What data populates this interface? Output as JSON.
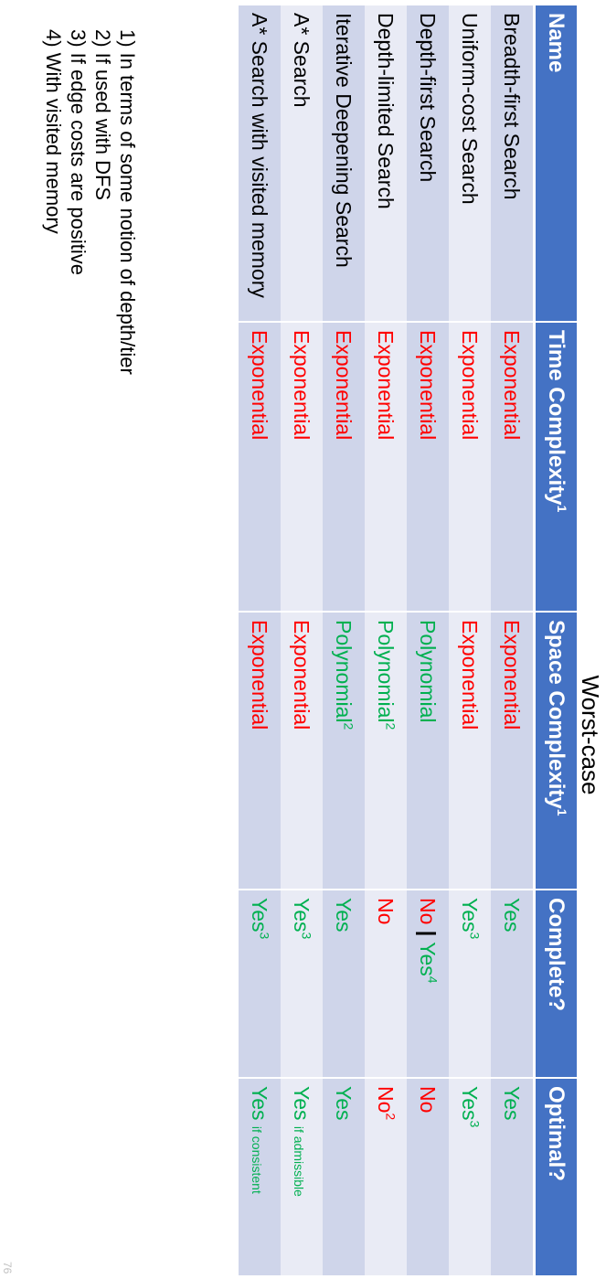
{
  "superheader": "Worst-case",
  "columns": [
    "Name",
    "Time Complexity",
    "Space Complexity",
    "Complete?",
    "Optimal?"
  ],
  "column_sup": {
    "time": "1",
    "space": "1"
  },
  "rows": [
    {
      "name": "Breadth-first Search",
      "time": "Exponential",
      "space": "Exponential",
      "complete": {
        "text": "Yes"
      },
      "optimal": {
        "text": "Yes"
      }
    },
    {
      "name": "Uniform-cost Search",
      "time": "Exponential",
      "space": "Exponential",
      "complete": {
        "text": "Yes",
        "sup": "3"
      },
      "optimal": {
        "text": "Yes",
        "sup": "3"
      }
    },
    {
      "name": "Depth-first Search",
      "time": "Exponential",
      "space": "Polynomial",
      "complete": {
        "text_a": "No",
        "separator": "|",
        "text_b": "Yes",
        "sup": "4"
      },
      "optimal": {
        "text": "No"
      }
    },
    {
      "name": "Depth-limited Search",
      "time": "Exponential",
      "space": "Polynomial",
      "space_sup": "2",
      "complete": {
        "text": "No"
      },
      "optimal": {
        "text": "No",
        "sup": "2"
      }
    },
    {
      "name": "Iterative Deepening Search",
      "time": "Exponential",
      "space": "Polynomial",
      "space_sup": "2",
      "complete": {
        "text": "Yes"
      },
      "optimal": {
        "text": "Yes"
      }
    },
    {
      "name": "A* Search",
      "time": "Exponential",
      "space": "Exponential",
      "complete": {
        "text": "Yes",
        "sup": "3"
      },
      "optimal": {
        "text": "Yes",
        "note": "if admissible"
      }
    },
    {
      "name": "A* Search with visited memory",
      "time": "Exponential",
      "space": "Exponential",
      "complete": {
        "text": "Yes",
        "sup": "3"
      },
      "optimal": {
        "text": "Yes",
        "note": "if consistent"
      }
    }
  ],
  "footnotes": [
    "1) In terms of some notion of depth/tier",
    "2) If used with DFS",
    "3) If edge costs are positive",
    "4) With visited memory"
  ],
  "slide_number": "76",
  "colors": {
    "header_bg": "#4472c4",
    "row_odd": "#cfd5ea",
    "row_even": "#e9ebf5",
    "bad": "#ff0000",
    "good": "#00b050"
  }
}
